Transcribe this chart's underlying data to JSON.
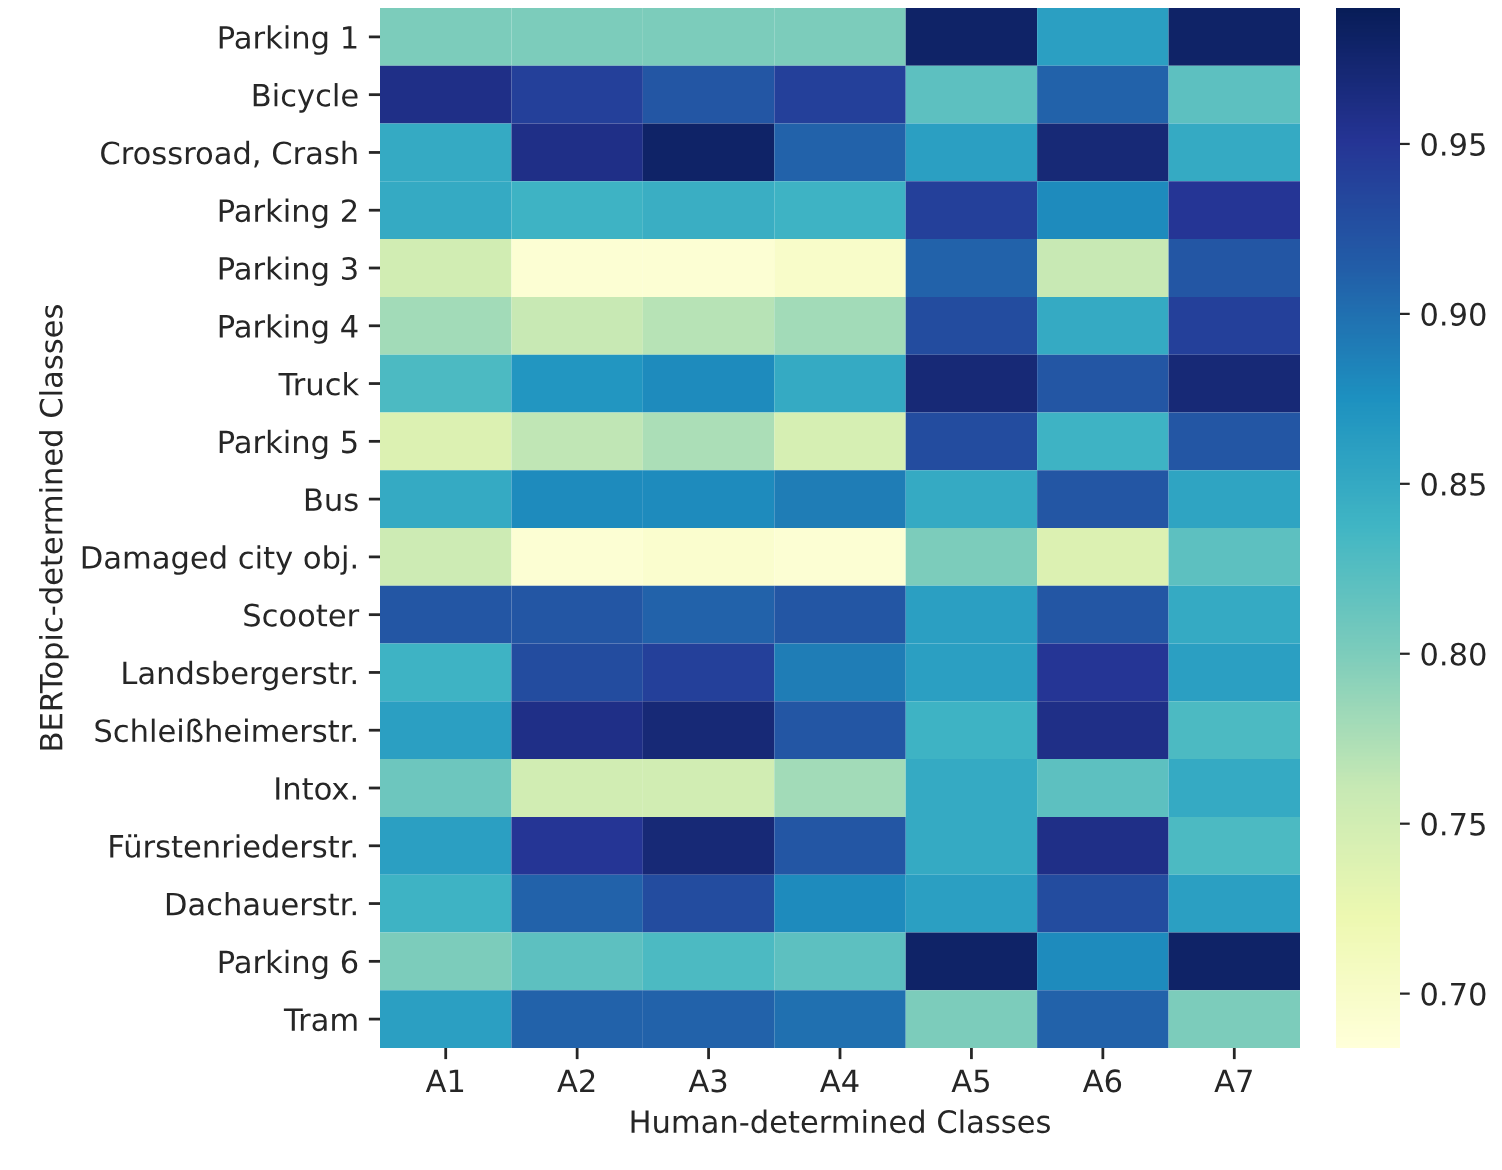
{
  "chart_data": {
    "type": "heatmap",
    "xlabel": "Human-determined Classes",
    "ylabel": "BERTopic-determined Classes",
    "categories": [
      "A1",
      "A2",
      "A3",
      "A4",
      "A5",
      "A6",
      "A7"
    ],
    "y_categories": [
      "Parking 1",
      "Bicycle",
      "Crossroad, Crash",
      "Parking 2",
      "Parking 3",
      "Parking 4",
      "Truck",
      "Parking 5",
      "Bus",
      "Damaged city obj.",
      "Scooter",
      "Landsbergerstr.",
      "Schleißheimerstr.",
      "Intox.",
      "Fürstenriederstr.",
      "Dachauerstr.",
      "Parking 6",
      "Tram"
    ],
    "cells": [
      [
        0.8,
        0.8,
        0.8,
        0.8,
        0.98,
        0.86,
        0.98
      ],
      [
        0.96,
        0.94,
        0.92,
        0.94,
        0.82,
        0.91,
        0.82
      ],
      [
        0.85,
        0.96,
        0.98,
        0.91,
        0.86,
        0.97,
        0.85
      ],
      [
        0.85,
        0.84,
        0.845,
        0.84,
        0.94,
        0.88,
        0.95
      ],
      [
        0.75,
        0.69,
        0.69,
        0.7,
        0.91,
        0.76,
        0.92
      ],
      [
        0.78,
        0.76,
        0.77,
        0.78,
        0.93,
        0.85,
        0.94
      ],
      [
        0.83,
        0.87,
        0.88,
        0.85,
        0.97,
        0.92,
        0.97
      ],
      [
        0.74,
        0.765,
        0.775,
        0.745,
        0.93,
        0.84,
        0.92
      ],
      [
        0.85,
        0.88,
        0.88,
        0.89,
        0.85,
        0.92,
        0.855
      ],
      [
        0.755,
        0.69,
        0.695,
        0.69,
        0.8,
        0.74,
        0.82
      ],
      [
        0.92,
        0.92,
        0.91,
        0.92,
        0.86,
        0.92,
        0.85
      ],
      [
        0.84,
        0.93,
        0.94,
        0.89,
        0.86,
        0.95,
        0.86
      ],
      [
        0.86,
        0.96,
        0.97,
        0.92,
        0.84,
        0.96,
        0.83
      ],
      [
        0.81,
        0.75,
        0.75,
        0.78,
        0.85,
        0.82,
        0.85
      ],
      [
        0.86,
        0.95,
        0.97,
        0.92,
        0.85,
        0.96,
        0.83
      ],
      [
        0.84,
        0.91,
        0.93,
        0.88,
        0.86,
        0.93,
        0.86
      ],
      [
        0.8,
        0.82,
        0.83,
        0.82,
        0.98,
        0.88,
        0.98
      ],
      [
        0.86,
        0.91,
        0.91,
        0.9,
        0.8,
        0.91,
        0.8
      ]
    ],
    "clim": [
      0.684,
      0.99
    ],
    "cticks": [
      {
        "value": 0.7,
        "label": "0.70"
      },
      0.75,
      {
        "value": 0.8,
        "label": "0.80"
      },
      0.85,
      {
        "value": 0.9,
        "label": "0.90"
      },
      0.95
    ]
  }
}
